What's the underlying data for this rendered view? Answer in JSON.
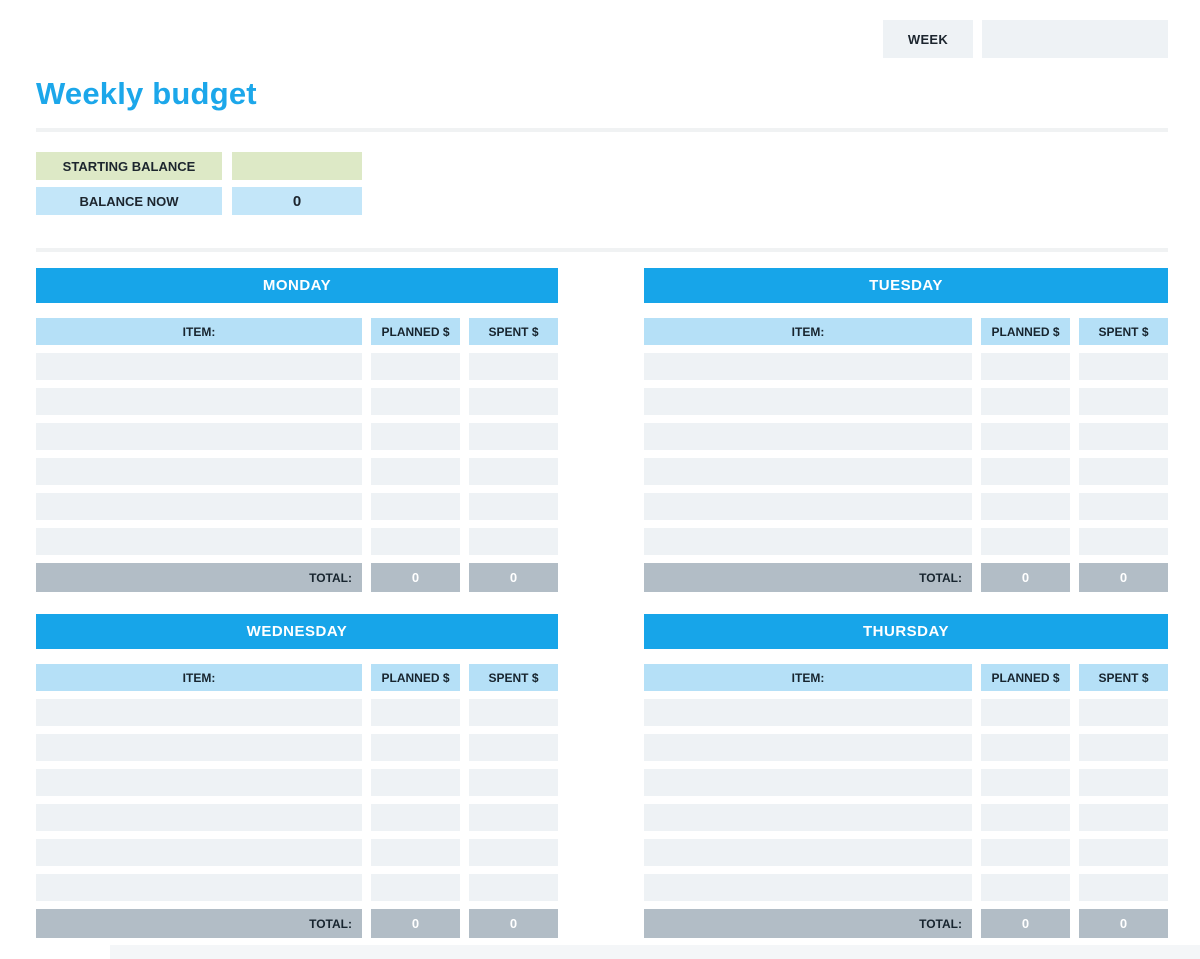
{
  "page": {
    "title": "Weekly budget"
  },
  "week": {
    "label": "WEEK",
    "value": ""
  },
  "balance": {
    "starting": {
      "label": "STARTING BALANCE",
      "value": ""
    },
    "now": {
      "label": "BALANCE NOW",
      "value": "0"
    }
  },
  "columns": {
    "item": "ITEM:",
    "planned": "PLANNED $",
    "spent": "SPENT $"
  },
  "total_label": "TOTAL:",
  "days": [
    {
      "name": "MONDAY",
      "rows": [
        [
          "",
          "",
          ""
        ],
        [
          "",
          "",
          ""
        ],
        [
          "",
          "",
          ""
        ],
        [
          "",
          "",
          ""
        ],
        [
          "",
          "",
          ""
        ],
        [
          "",
          "",
          ""
        ]
      ],
      "total": {
        "planned": "0",
        "spent": "0"
      }
    },
    {
      "name": "TUESDAY",
      "rows": [
        [
          "",
          "",
          ""
        ],
        [
          "",
          "",
          ""
        ],
        [
          "",
          "",
          ""
        ],
        [
          "",
          "",
          ""
        ],
        [
          "",
          "",
          ""
        ],
        [
          "",
          "",
          ""
        ]
      ],
      "total": {
        "planned": "0",
        "spent": "0"
      }
    },
    {
      "name": "WEDNESDAY",
      "rows": [
        [
          "",
          "",
          ""
        ],
        [
          "",
          "",
          ""
        ],
        [
          "",
          "",
          ""
        ],
        [
          "",
          "",
          ""
        ],
        [
          "",
          "",
          ""
        ],
        [
          "",
          "",
          ""
        ]
      ],
      "total": {
        "planned": "0",
        "spent": "0"
      }
    },
    {
      "name": "THURSDAY",
      "rows": [
        [
          "",
          "",
          ""
        ],
        [
          "",
          "",
          ""
        ],
        [
          "",
          "",
          ""
        ],
        [
          "",
          "",
          ""
        ],
        [
          "",
          "",
          ""
        ],
        [
          "",
          "",
          ""
        ]
      ],
      "total": {
        "planned": "0",
        "spent": "0"
      }
    }
  ],
  "colors": {
    "accent_blue": "#17a5e9",
    "title_blue": "#1ca7ea",
    "light_blue_header": "#b5e0f7",
    "balance_blue": "#c3e6f9",
    "balance_green": "#dde9c6",
    "row_gray": "#eef2f5",
    "total_gray": "#b2bdc6",
    "text_dark": "#1c252e"
  }
}
